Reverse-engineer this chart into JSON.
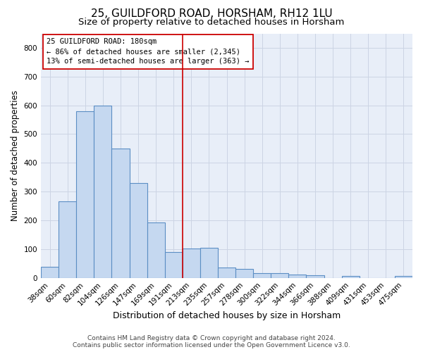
{
  "title_line1": "25, GUILDFORD ROAD, HORSHAM, RH12 1LU",
  "title_line2": "Size of property relative to detached houses in Horsham",
  "xlabel": "Distribution of detached houses by size in Horsham",
  "ylabel": "Number of detached properties",
  "footer_line1": "Contains HM Land Registry data © Crown copyright and database right 2024.",
  "footer_line2": "Contains public sector information licensed under the Open Government Licence v3.0.",
  "categories": [
    "38sqm",
    "60sqm",
    "82sqm",
    "104sqm",
    "126sqm",
    "147sqm",
    "169sqm",
    "191sqm",
    "213sqm",
    "235sqm",
    "257sqm",
    "278sqm",
    "300sqm",
    "322sqm",
    "344sqm",
    "366sqm",
    "388sqm",
    "409sqm",
    "431sqm",
    "453sqm",
    "475sqm"
  ],
  "values": [
    38,
    265,
    580,
    600,
    450,
    330,
    193,
    90,
    102,
    105,
    37,
    32,
    17,
    17,
    12,
    10,
    0,
    6,
    0,
    0,
    7
  ],
  "bar_color": "#c5d8f0",
  "bar_edge_color": "#5b8ec4",
  "bar_linewidth": 0.8,
  "vline_x_idx": 7,
  "vline_color": "#cc0000",
  "annotation_line1": "25 GUILDFORD ROAD: 180sqm",
  "annotation_line2": "← 86% of detached houses are smaller (2,345)",
  "annotation_line3": "13% of semi-detached houses are larger (363) →",
  "ylim": [
    0,
    850
  ],
  "yticks": [
    0,
    100,
    200,
    300,
    400,
    500,
    600,
    700,
    800
  ],
  "grid_color": "#ccd4e4",
  "background_color": "#e8eef8",
  "title_fontsize": 11,
  "subtitle_fontsize": 9.5,
  "xlabel_fontsize": 9,
  "ylabel_fontsize": 8.5,
  "tick_fontsize": 7.5,
  "annotation_fontsize": 7.5,
  "footer_fontsize": 6.5
}
